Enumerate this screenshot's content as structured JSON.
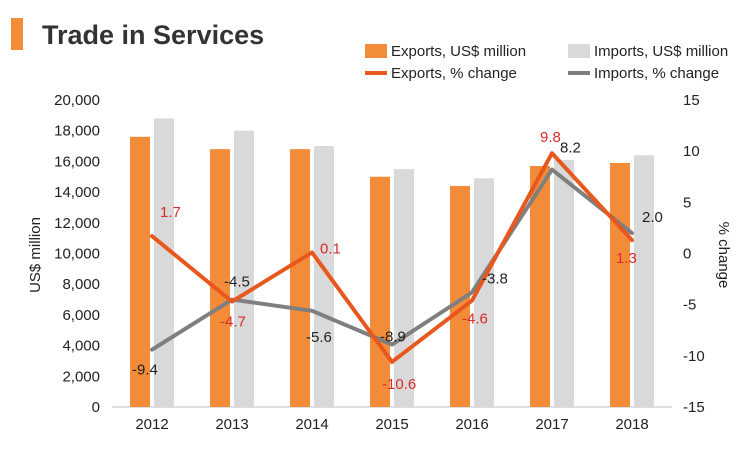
{
  "chart_data": {
    "type": "bar",
    "title": "Trade in Services",
    "categories": [
      "2012",
      "2013",
      "2014",
      "2015",
      "2016",
      "2017",
      "2018"
    ],
    "ylabel": "US$ million",
    "y2label": "% change",
    "ylim": [
      0,
      20000
    ],
    "y2lim": [
      -15,
      15
    ],
    "yticks": [
      "0",
      "2,000",
      "4,000",
      "6,000",
      "8,000",
      "10,000",
      "12,000",
      "14,000",
      "16,000",
      "18,000",
      "20,000"
    ],
    "y2ticks": [
      "-15",
      "-10",
      "-5",
      "0",
      "5",
      "10",
      "15"
    ],
    "legend_position": "top-right",
    "series": [
      {
        "name": "Exports, US$ million",
        "kind": "bar",
        "axis": "left",
        "color": "#f28c38",
        "values": [
          17600,
          16800,
          16800,
          15000,
          14400,
          15700,
          15900
        ]
      },
      {
        "name": "Imports, US$ million",
        "kind": "bar",
        "axis": "left",
        "color": "#d9d9d9",
        "values": [
          18800,
          18000,
          17000,
          15500,
          14900,
          16100,
          16400
        ]
      },
      {
        "name": "Exports, % change",
        "kind": "line",
        "axis": "right",
        "color": "#e8571e",
        "label_color": "#d92b2b",
        "values": [
          1.7,
          -4.7,
          0.1,
          -10.6,
          -4.6,
          9.8,
          1.3
        ],
        "labels": [
          "1.7",
          "-4.7",
          "0.1",
          "-10.6",
          "-4.6",
          "9.8",
          "1.3"
        ]
      },
      {
        "name": "Imports, % change",
        "kind": "line",
        "axis": "right",
        "color": "#7f7f7f",
        "label_color": "#222222",
        "values": [
          -9.4,
          -4.5,
          -5.6,
          -8.9,
          -3.8,
          8.2,
          2.0
        ],
        "labels": [
          "-9.4",
          "-4.5",
          "-5.6",
          "-8.9",
          "-3.8",
          "8.2",
          "2.0"
        ]
      }
    ]
  }
}
